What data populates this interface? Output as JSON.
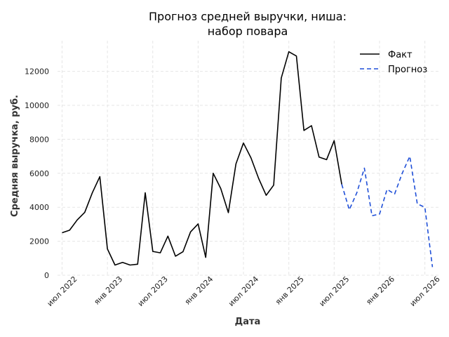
{
  "chart_data": {
    "type": "line",
    "title_lines": [
      "Прогноз средней выручки, ниша:",
      "набор повара"
    ],
    "xlabel": "Дата",
    "ylabel": "Средняя выручка, руб.",
    "ylim": [
      0,
      13800
    ],
    "xlim": [
      -0.6,
      49.8
    ],
    "y_ticks": [
      0,
      2000,
      4000,
      6000,
      8000,
      10000,
      12000
    ],
    "x_ticks": [
      {
        "index": 0,
        "label": "июл 2022"
      },
      {
        "index": 6,
        "label": "янв 2023"
      },
      {
        "index": 12,
        "label": "июл 2023"
      },
      {
        "index": 18,
        "label": "янв 2024"
      },
      {
        "index": 24,
        "label": "июл 2024"
      },
      {
        "index": 30,
        "label": "янв 2025"
      },
      {
        "index": 36,
        "label": "июл 2025"
      },
      {
        "index": 42,
        "label": "янв 2026"
      },
      {
        "index": 48,
        "label": "июл 2026"
      }
    ],
    "x_index_note": "month index 0 = июл 2022",
    "grid": true,
    "legend_position": "top-right",
    "series": [
      {
        "name": "Факт",
        "color": "#000000",
        "style": "solid",
        "points": [
          [
            0,
            2500
          ],
          [
            1,
            2650
          ],
          [
            2,
            3250
          ],
          [
            3,
            3700
          ],
          [
            4,
            4850
          ],
          [
            5,
            5800
          ],
          [
            6,
            1550
          ],
          [
            7,
            600
          ],
          [
            8,
            750
          ],
          [
            9,
            600
          ],
          [
            10,
            650
          ],
          [
            11,
            4850
          ],
          [
            12,
            1400
          ],
          [
            13,
            1320
          ],
          [
            14,
            2300
          ],
          [
            15,
            1120
          ],
          [
            16,
            1380
          ],
          [
            17,
            2550
          ],
          [
            18,
            3020
          ],
          [
            19,
            1050
          ],
          [
            20,
            6000
          ],
          [
            21,
            5100
          ],
          [
            22,
            3680
          ],
          [
            23,
            6550
          ],
          [
            24,
            7780
          ],
          [
            25,
            6900
          ],
          [
            26,
            5700
          ],
          [
            27,
            4700
          ],
          [
            28,
            5300
          ],
          [
            29,
            11600
          ],
          [
            30,
            13150
          ],
          [
            31,
            12900
          ],
          [
            32,
            8520
          ],
          [
            33,
            8800
          ],
          [
            34,
            6950
          ],
          [
            35,
            6800
          ],
          [
            36,
            7920
          ],
          [
            37,
            5350
          ]
        ]
      },
      {
        "name": "Прогноз",
        "color": "#1f4fd8",
        "style": "dashed",
        "points": [
          [
            37,
            5350
          ],
          [
            38,
            3850
          ],
          [
            39,
            4850
          ],
          [
            40,
            6300
          ],
          [
            41,
            3500
          ],
          [
            42,
            3600
          ],
          [
            43,
            5050
          ],
          [
            44,
            4780
          ],
          [
            45,
            6000
          ],
          [
            46,
            7000
          ],
          [
            47,
            4200
          ],
          [
            48,
            4000
          ],
          [
            49,
            480
          ]
        ]
      }
    ]
  }
}
